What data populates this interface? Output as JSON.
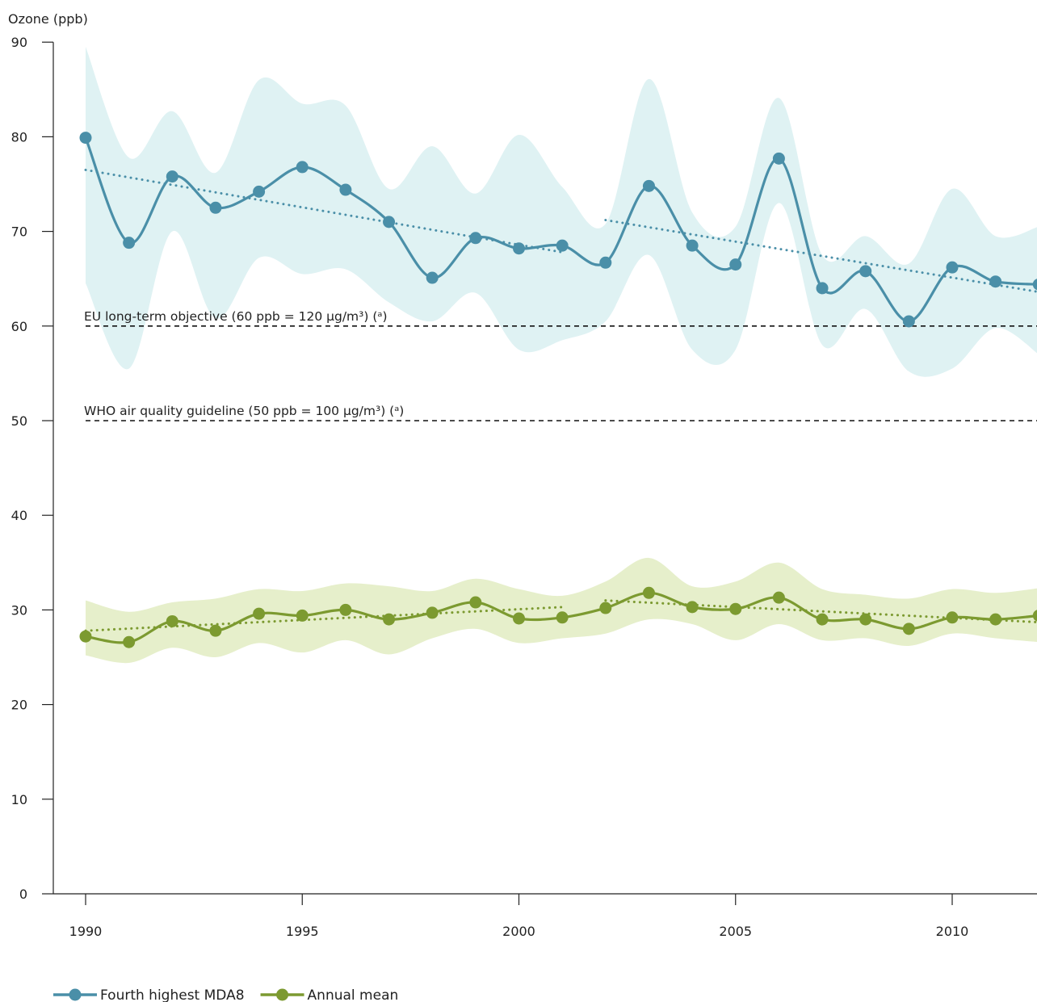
{
  "chart_data": {
    "type": "line",
    "ylabel": "Ozone (ppb)",
    "ylim": [
      0,
      90
    ],
    "yticks": [
      0,
      10,
      20,
      30,
      40,
      50,
      60,
      70,
      80,
      90
    ],
    "xticks": [
      1990,
      1995,
      2000,
      2005,
      2010
    ],
    "x": [
      1990,
      1991,
      1992,
      1993,
      1994,
      1995,
      1996,
      1997,
      1998,
      1999,
      2000,
      2001,
      2002,
      2003,
      2004,
      2005,
      2006,
      2007,
      2008,
      2009,
      2010,
      2011,
      2012
    ],
    "series": [
      {
        "name": "Fourth highest MDA8",
        "color": "#4a8fa8",
        "band_color": "#dff2f3",
        "values": [
          79.9,
          68.8,
          75.8,
          72.5,
          74.2,
          76.8,
          74.4,
          71.0,
          65.1,
          69.3,
          68.2,
          68.5,
          66.7,
          74.8,
          68.5,
          66.5,
          77.7,
          64.0,
          65.8,
          60.5,
          66.2,
          64.7,
          64.4
        ],
        "band_upper": [
          89.5,
          77.8,
          82.7,
          76.2,
          86.0,
          83.5,
          83.3,
          74.5,
          79.0,
          74.0,
          80.2,
          74.7,
          70.8,
          86.1,
          72.0,
          70.5,
          84.1,
          67.5,
          69.5,
          66.6,
          74.5,
          69.5,
          70.5
        ],
        "band_lower": [
          64.5,
          55.5,
          70.0,
          60.8,
          67.2,
          65.5,
          66.0,
          62.5,
          60.5,
          63.5,
          57.5,
          58.5,
          60.5,
          67.5,
          57.5,
          57.5,
          73.0,
          58.0,
          61.8,
          55.2,
          55.5,
          59.8,
          57.0
        ],
        "trend": [
          [
            1990,
            76.5
          ],
          [
            2001,
            67.8
          ]
        ],
        "trend2": [
          [
            2002,
            71.2
          ],
          [
            2012,
            63.6
          ]
        ]
      },
      {
        "name": "Annual mean",
        "color": "#7c9a30",
        "band_color": "#e6efcb",
        "values": [
          27.2,
          26.6,
          28.8,
          27.8,
          29.6,
          29.4,
          30.0,
          29.0,
          29.7,
          30.8,
          29.1,
          29.2,
          30.2,
          31.8,
          30.3,
          30.1,
          31.3,
          29.0,
          29.0,
          28.0,
          29.2,
          29.0,
          29.4
        ],
        "band_upper": [
          31.0,
          29.8,
          30.8,
          31.2,
          32.2,
          32.0,
          32.8,
          32.5,
          32.0,
          33.3,
          32.2,
          31.5,
          33.0,
          35.5,
          32.5,
          33.0,
          35.0,
          32.2,
          31.6,
          31.2,
          32.2,
          31.8,
          32.3
        ],
        "band_lower": [
          25.2,
          24.4,
          26.0,
          25.0,
          26.5,
          25.5,
          26.8,
          25.3,
          27.0,
          28.0,
          26.5,
          27.0,
          27.5,
          29.0,
          28.5,
          26.8,
          28.5,
          26.8,
          27.0,
          26.2,
          27.5,
          27.0,
          26.6
        ],
        "trend": [
          [
            1990,
            27.8
          ],
          [
            2001,
            30.3
          ]
        ],
        "trend2": [
          [
            2002,
            31.0
          ],
          [
            2012,
            28.7
          ]
        ]
      }
    ],
    "reference_lines": [
      {
        "value": 60,
        "label": "EU long-term objective (60 ppb = 120 µg/m³) (ᵃ)"
      },
      {
        "value": 50,
        "label": "WHO air quality guideline (50 ppb = 100 µg/m³)  (ᵃ)"
      }
    ],
    "legend": {
      "placement": "bottom-left"
    }
  }
}
